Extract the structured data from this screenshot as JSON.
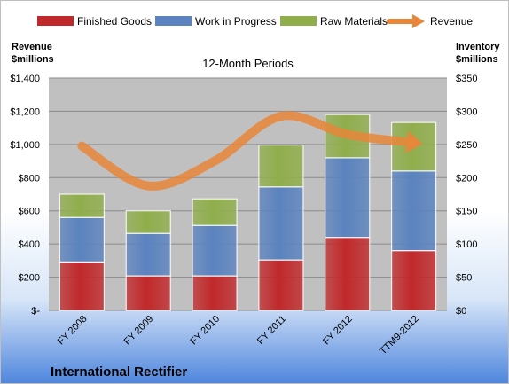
{
  "company_name": "International Rectifier",
  "colors": {
    "finished_goods": "#c0292b",
    "work_in_progress": "#5b83bf",
    "raw_materials": "#90ae4c",
    "revenue": "#e8863a"
  },
  "chart_data": {
    "type": "bar",
    "subtype": "stacked-bar-with-line",
    "title": "12-Month Periods",
    "categories": [
      "FY 2008",
      "FY 2009",
      "FY 2010",
      "FY 2011",
      "FY 2012",
      "TTM9-2012"
    ],
    "left_axis": {
      "label_line1": "Revenue",
      "label_line2": "$millions",
      "range": [
        0,
        1400
      ],
      "ticks": [
        "$-",
        "$200",
        "$400",
        "$600",
        "$800",
        "$1,000",
        "$1,200",
        "$1,400"
      ]
    },
    "right_axis": {
      "label_line1": "Inventory",
      "label_line2": "$millions",
      "range": [
        0,
        350
      ],
      "ticks": [
        "$0",
        "$50",
        "$100",
        "$150",
        "$200",
        "$250",
        "$300",
        "$350"
      ]
    },
    "series": [
      {
        "name": "Finished Goods",
        "type": "bar",
        "axis": "right",
        "values": [
          73,
          52,
          52,
          76,
          110,
          90
        ]
      },
      {
        "name": "Work in Progress",
        "type": "bar",
        "axis": "right",
        "values": [
          67,
          64,
          76,
          110,
          120,
          120
        ]
      },
      {
        "name": "Raw Materials",
        "type": "bar",
        "axis": "right",
        "values": [
          35,
          34,
          40,
          63,
          65,
          73
        ]
      },
      {
        "name": "Revenue",
        "type": "line",
        "axis": "left",
        "values": [
          990,
          750,
          900,
          1170,
          1060,
          1010
        ]
      }
    ],
    "grid": true,
    "legend_position": "top"
  }
}
